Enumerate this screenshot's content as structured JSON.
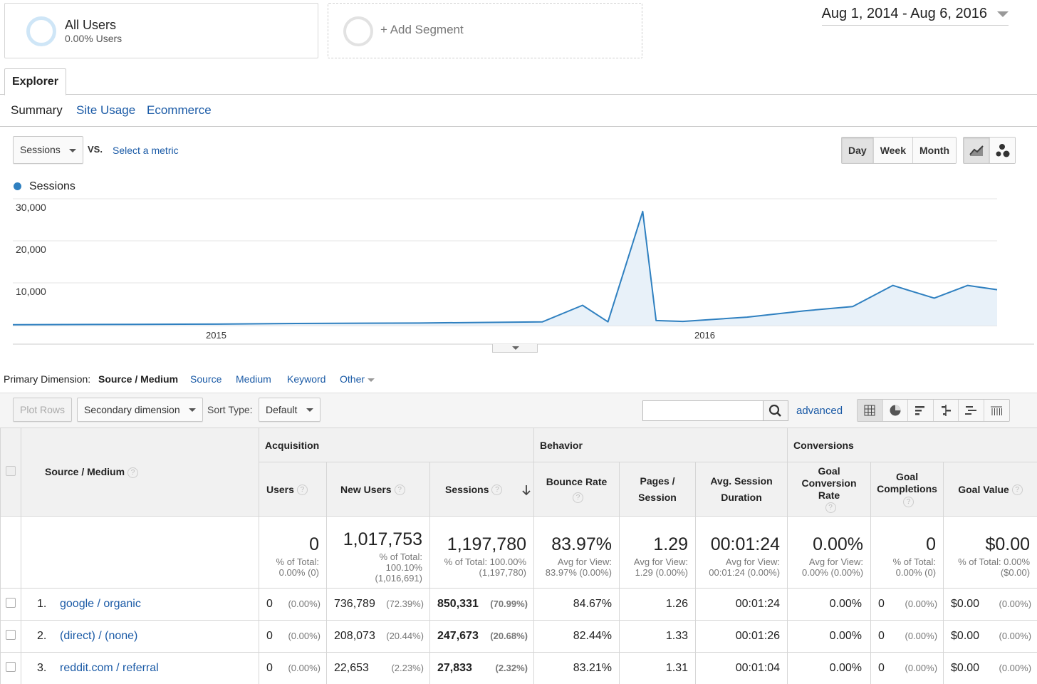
{
  "segments": {
    "all_users_title": "All Users",
    "all_users_sub": "0.00% Users",
    "add_segment": "+ Add Segment"
  },
  "date_range": "Aug 1, 2014 - Aug 6, 2016",
  "tabs": {
    "explorer": "Explorer",
    "sub": [
      "Summary",
      "Site Usage",
      "Ecommerce"
    ]
  },
  "controls": {
    "metric": "Sessions",
    "vs": "VS.",
    "select_metric": "Select a metric",
    "granularity": [
      "Day",
      "Week",
      "Month"
    ],
    "active_granularity": "Day"
  },
  "chart_data": {
    "type": "area",
    "series": [
      {
        "name": "Sessions"
      }
    ],
    "yticks": [
      "30,000",
      "20,000",
      "10,000"
    ],
    "xticks": [
      "2015",
      "2016"
    ],
    "ylim": [
      0,
      30000
    ],
    "x_range": [
      "2014-08-01",
      "2016-08-06"
    ],
    "x": [
      "2014-08-01",
      "2014-11-01",
      "2015-01-01",
      "2015-03-01",
      "2015-06-01",
      "2015-09-01",
      "2015-10-01",
      "2015-10-20",
      "2015-11-15",
      "2015-11-25",
      "2015-12-15",
      "2016-02-01",
      "2016-03-15",
      "2016-04-20",
      "2016-05-20",
      "2016-06-20",
      "2016-07-15",
      "2016-08-06"
    ],
    "values": [
      200,
      300,
      350,
      500,
      600,
      900,
      4800,
      900,
      27000,
      1200,
      1000,
      2000,
      3500,
      4500,
      9500,
      6500,
      9500,
      8500
    ],
    "grid": true,
    "legend_position": "top-left"
  },
  "primary_dimension": {
    "label": "Primary Dimension:",
    "active": "Source / Medium",
    "options": [
      "Source",
      "Medium",
      "Keyword",
      "Other"
    ]
  },
  "toolbar": {
    "plot_rows": "Plot Rows",
    "secondary_dimension": "Secondary dimension",
    "sort_type_label": "Sort Type:",
    "sort_type_value": "Default",
    "advanced": "advanced"
  },
  "table": {
    "dim_header": "Source / Medium",
    "groups": [
      "Acquisition",
      "Behavior",
      "Conversions"
    ],
    "columns": [
      "Users",
      "New Users",
      "Sessions",
      "Bounce Rate",
      "Pages / Session",
      "Avg. Session Duration",
      "Goal Conversion Rate",
      "Goal Completions",
      "Goal Value"
    ],
    "totals": [
      {
        "big": "0",
        "sub": "% of Total: 0.00% (0)"
      },
      {
        "big": "1,017,753",
        "sub": "% of Total: 100.10% (1,016,691)"
      },
      {
        "big": "1,197,780",
        "sub": "% of Total: 100.00% (1,197,780)"
      },
      {
        "big": "83.97%",
        "sub": "Avg for View: 83.97% (0.00%)"
      },
      {
        "big": "1.29",
        "sub": "Avg for View: 1.29 (0.00%)"
      },
      {
        "big": "00:01:24",
        "sub": "Avg for View: 00:01:24 (0.00%)"
      },
      {
        "big": "0.00%",
        "sub": "Avg for View: 0.00% (0.00%)"
      },
      {
        "big": "0",
        "sub": "% of Total: 0.00% (0)"
      },
      {
        "big": "$0.00",
        "sub": "% of Total: 0.00% ($0.00)"
      }
    ],
    "rows": [
      {
        "idx": "1.",
        "name": "google / organic",
        "users": "0",
        "users_pct": "(0.00%)",
        "new_users": "736,789",
        "new_users_pct": "(72.39%)",
        "sessions": "850,331",
        "sessions_pct": "(70.99%)",
        "bounce": "84.67%",
        "pages": "1.26",
        "duration": "00:01:24",
        "conv": "0.00%",
        "goal_comp": "0",
        "goal_comp_pct": "(0.00%)",
        "goal_val": "$0.00",
        "goal_val_pct": "(0.00%)"
      },
      {
        "idx": "2.",
        "name": "(direct) / (none)",
        "users": "0",
        "users_pct": "(0.00%)",
        "new_users": "208,073",
        "new_users_pct": "(20.44%)",
        "sessions": "247,673",
        "sessions_pct": "(20.68%)",
        "bounce": "82.44%",
        "pages": "1.33",
        "duration": "00:01:26",
        "conv": "0.00%",
        "goal_comp": "0",
        "goal_comp_pct": "(0.00%)",
        "goal_val": "$0.00",
        "goal_val_pct": "(0.00%)"
      },
      {
        "idx": "3.",
        "name": "reddit.com / referral",
        "users": "0",
        "users_pct": "(0.00%)",
        "new_users": "22,653",
        "new_users_pct": "(2.23%)",
        "sessions": "27,833",
        "sessions_pct": "(2.32%)",
        "bounce": "83.21%",
        "pages": "1.31",
        "duration": "00:01:04",
        "conv": "0.00%",
        "goal_comp": "0",
        "goal_comp_pct": "(0.00%)",
        "goal_val": "$0.00",
        "goal_val_pct": "(0.00%)"
      }
    ]
  },
  "colors": {
    "series": "#2f80c0",
    "area": "#e8f1f9",
    "link": "#1a5aa6"
  }
}
